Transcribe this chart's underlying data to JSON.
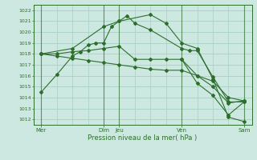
{
  "background_color": "#cde8e0",
  "grid_color": "#a8cfc4",
  "line_color": "#2d6e2d",
  "text_color": "#2d6e2d",
  "xlabel": "Pression niveau de la mer( hPa )",
  "ylim": [
    1011.5,
    1022.5
  ],
  "yticks": [
    1012,
    1013,
    1014,
    1015,
    1016,
    1017,
    1018,
    1019,
    1020,
    1021,
    1022
  ],
  "major_xtick_positions": [
    0,
    8,
    10,
    18,
    26
  ],
  "major_xtick_labels": [
    "Mer",
    "Dim",
    "Jeu",
    "Ven",
    "Sam"
  ],
  "xlim": [
    -1,
    27
  ],
  "line1_x": [
    0,
    2,
    4,
    5,
    6,
    7,
    8,
    9,
    10,
    11,
    12,
    14,
    18,
    19,
    20,
    22,
    24,
    26
  ],
  "line1_y": [
    1014.5,
    1016.1,
    1017.8,
    1018.2,
    1018.8,
    1019.0,
    1019.0,
    1020.5,
    1021.0,
    1021.5,
    1020.8,
    1020.2,
    1018.5,
    1018.3,
    1018.3,
    1015.9,
    1013.6,
    1013.6
  ],
  "line2_x": [
    0,
    2,
    4,
    6,
    8,
    10,
    12,
    14,
    16,
    18,
    20,
    22,
    24,
    26
  ],
  "line2_y": [
    1018.0,
    1018.0,
    1018.2,
    1018.3,
    1018.5,
    1018.7,
    1017.5,
    1017.5,
    1017.5,
    1017.5,
    1016.0,
    1015.5,
    1014.0,
    1013.7
  ],
  "line3_x": [
    0,
    2,
    4,
    6,
    8,
    10,
    12,
    14,
    16,
    18,
    20,
    22,
    24,
    26
  ],
  "line3_y": [
    1018.0,
    1017.8,
    1017.6,
    1017.4,
    1017.2,
    1017.0,
    1016.8,
    1016.6,
    1016.5,
    1016.5,
    1016.0,
    1015.0,
    1013.5,
    1013.7
  ],
  "line4_x": [
    0,
    4,
    8,
    10,
    14,
    16,
    18,
    20,
    22,
    24,
    26
  ],
  "line4_y": [
    1018.0,
    1018.5,
    1020.5,
    1021.0,
    1021.6,
    1020.8,
    1019.0,
    1018.5,
    1015.7,
    1012.2,
    1011.8
  ],
  "line5_x": [
    18,
    20,
    22,
    24,
    26
  ],
  "line5_y": [
    1017.5,
    1015.3,
    1014.2,
    1012.4,
    1013.6
  ],
  "vertical_major_x": [
    0,
    8,
    10,
    18,
    26
  ],
  "vertical_minor_x": [
    2,
    4,
    6,
    12,
    14,
    16,
    20,
    22,
    24
  ]
}
